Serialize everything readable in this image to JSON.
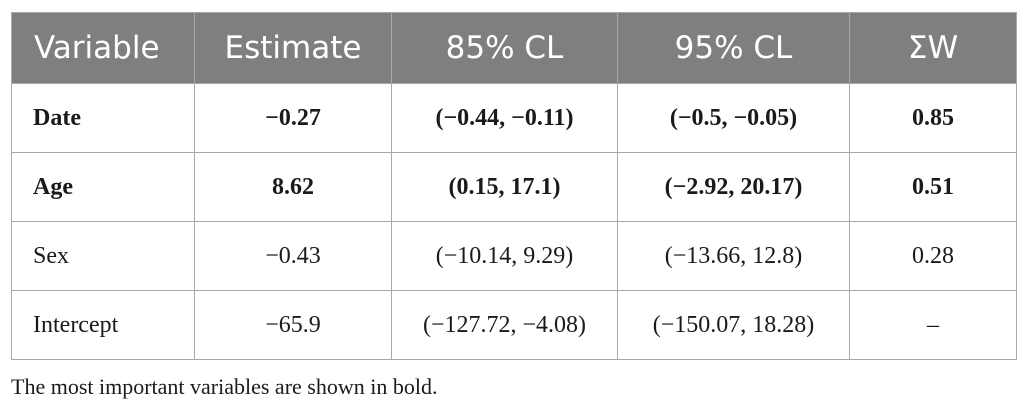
{
  "table": {
    "headers": [
      "Variable",
      "Estimate",
      "85% CL",
      "95% CL",
      "ΣW"
    ],
    "rows": [
      {
        "cells": [
          "Date",
          "−0.27",
          "(−0.44, −0.11)",
          "(−0.5, −0.05)",
          "0.85"
        ],
        "bold": true
      },
      {
        "cells": [
          "Age",
          "8.62",
          "(0.15, 17.1)",
          "(−2.92, 20.17)",
          "0.51"
        ],
        "bold": true
      },
      {
        "cells": [
          "Sex",
          "−0.43",
          "(−10.14, 9.29)",
          "(−13.66, 12.8)",
          "0.28"
        ],
        "bold": false
      },
      {
        "cells": [
          "Intercept",
          "−65.9",
          "(−127.72, −4.08)",
          "(−150.07, 18.28)",
          "–"
        ],
        "bold": false
      }
    ]
  },
  "footnote": "The most important variables are shown in bold.",
  "colors": {
    "header_background": "#7f7f7f",
    "header_text": "#ffffff",
    "border": "#a8a8a8"
  }
}
